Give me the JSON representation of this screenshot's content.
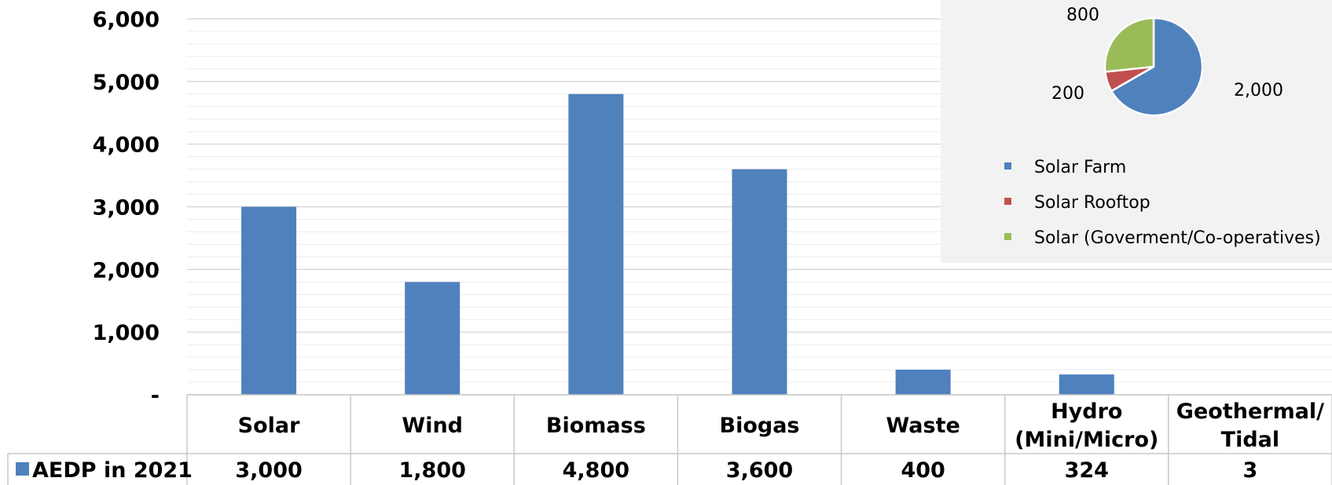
{
  "chart_data": [
    {
      "type": "bar",
      "categories": [
        "Solar",
        "Wind",
        "Biomass",
        "Biogas",
        "Waste",
        "Hydro (Mini/Micro)",
        "Geothermal/ Tidal"
      ],
      "category_lines": [
        [
          "Solar"
        ],
        [
          "Wind"
        ],
        [
          "Biomass"
        ],
        [
          "Biogas"
        ],
        [
          "Waste"
        ],
        [
          "Hydro",
          "(Mini/Micro)"
        ],
        [
          "Geothermal/",
          "Tidal"
        ]
      ],
      "series": [
        {
          "name": "AEDP in 2021",
          "values": [
            3000,
            1800,
            4800,
            3600,
            400,
            324,
            3
          ],
          "value_labels": [
            "3,000",
            "1,800",
            "4,800",
            "3,600",
            "400",
            "324",
            "3"
          ],
          "color": "#4f81bd"
        }
      ],
      "ylim": [
        0,
        6000
      ],
      "yticks": [
        0,
        1000,
        2000,
        3000,
        4000,
        5000,
        6000
      ],
      "ytick_labels": [
        "-",
        "1,000",
        "2,000",
        "3,000",
        "4,000",
        "5,000",
        "6,000"
      ],
      "grid": true,
      "data_table": true
    },
    {
      "type": "pie",
      "labels": [
        "Solar Farm",
        "Solar Rooftop",
        "Solar (Goverment/Co-operatives)"
      ],
      "values": [
        2000,
        200,
        800
      ],
      "value_labels": [
        "2,000",
        "200",
        "800"
      ],
      "colors": [
        "#4f81bd",
        "#c0504d",
        "#9bbb59"
      ],
      "legend_position": "bottom"
    }
  ]
}
